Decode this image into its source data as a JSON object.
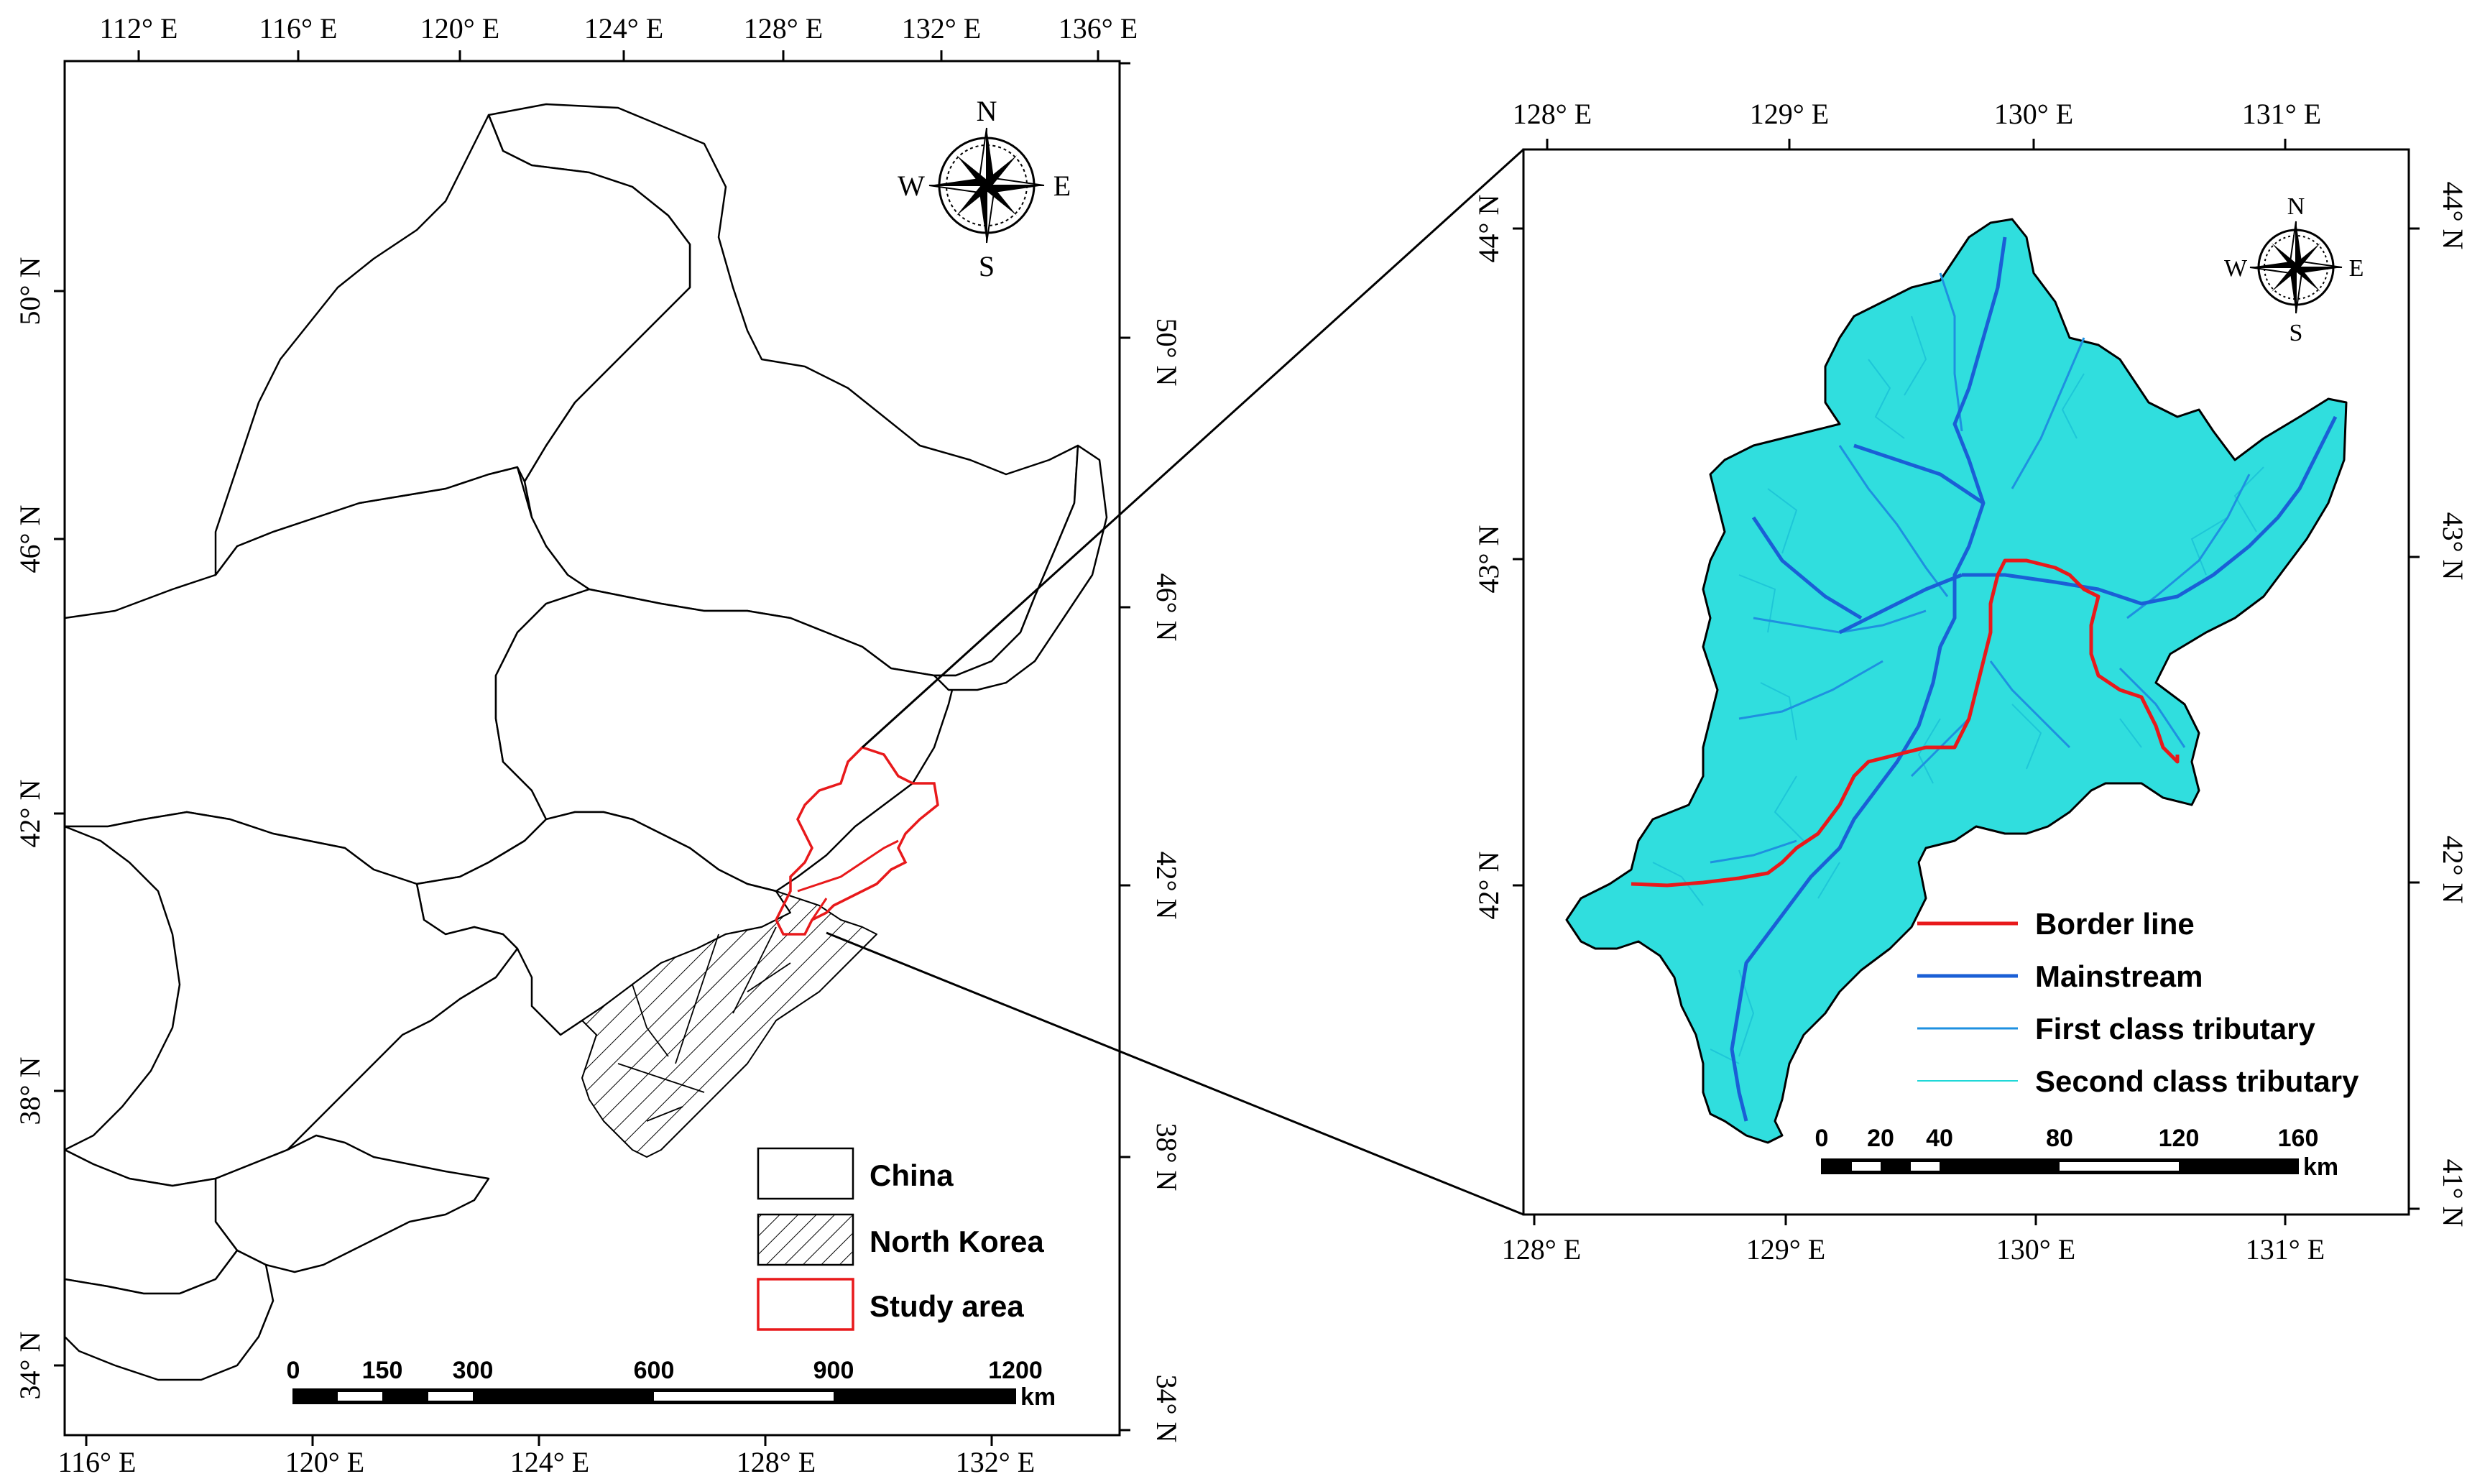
{
  "left_map": {
    "top_lon_labels": [
      "112° E",
      "116° E",
      "120° E",
      "124° E",
      "128° E",
      "132° E",
      "136° E"
    ],
    "bottom_lon_labels": [
      "116° E",
      "120° E",
      "124° E",
      "128° E",
      "132° E"
    ],
    "left_lat_labels": [
      "50° N",
      "46° N",
      "42° N",
      "38° N",
      "34° N"
    ],
    "right_lat_labels": [
      "50° N",
      "46° N",
      "42° N",
      "38° N",
      "34° N"
    ],
    "compass": {
      "n": "N",
      "s": "S",
      "e": "E",
      "w": "W"
    },
    "legend": {
      "china": "China",
      "north_korea": "North Korea",
      "study_area": "Study area"
    },
    "scalebar": {
      "ticks": [
        "0",
        "150",
        "300",
        "600",
        "900",
        "1200"
      ],
      "unit": "km"
    }
  },
  "right_map": {
    "top_lon_labels": [
      "128° E",
      "129° E",
      "130° E",
      "131° E"
    ],
    "bottom_lon_labels": [
      "128° E",
      "129° E",
      "130° E",
      "131° E"
    ],
    "left_lat_labels": [
      "44° N",
      "43° N",
      "42° N"
    ],
    "right_lat_labels": [
      "44° N",
      "43° N",
      "42° N",
      "41° N"
    ],
    "compass": {
      "n": "N",
      "s": "S",
      "e": "E",
      "w": "W"
    },
    "legend": {
      "border_line": "Border line",
      "mainstream": "Mainstream",
      "first_class": "First class tributary",
      "second_class": "Second class tributary"
    },
    "scalebar": {
      "ticks": [
        "0",
        "20",
        "40",
        "80",
        "120",
        "160"
      ],
      "unit": "km"
    }
  },
  "colors": {
    "border_line": "#e8191b",
    "mainstream": "#1a5fd6",
    "first_class": "#1e90e0",
    "second_class": "#20d8d8",
    "basin_fill": "#30dede",
    "study_area": "#e8191b"
  }
}
